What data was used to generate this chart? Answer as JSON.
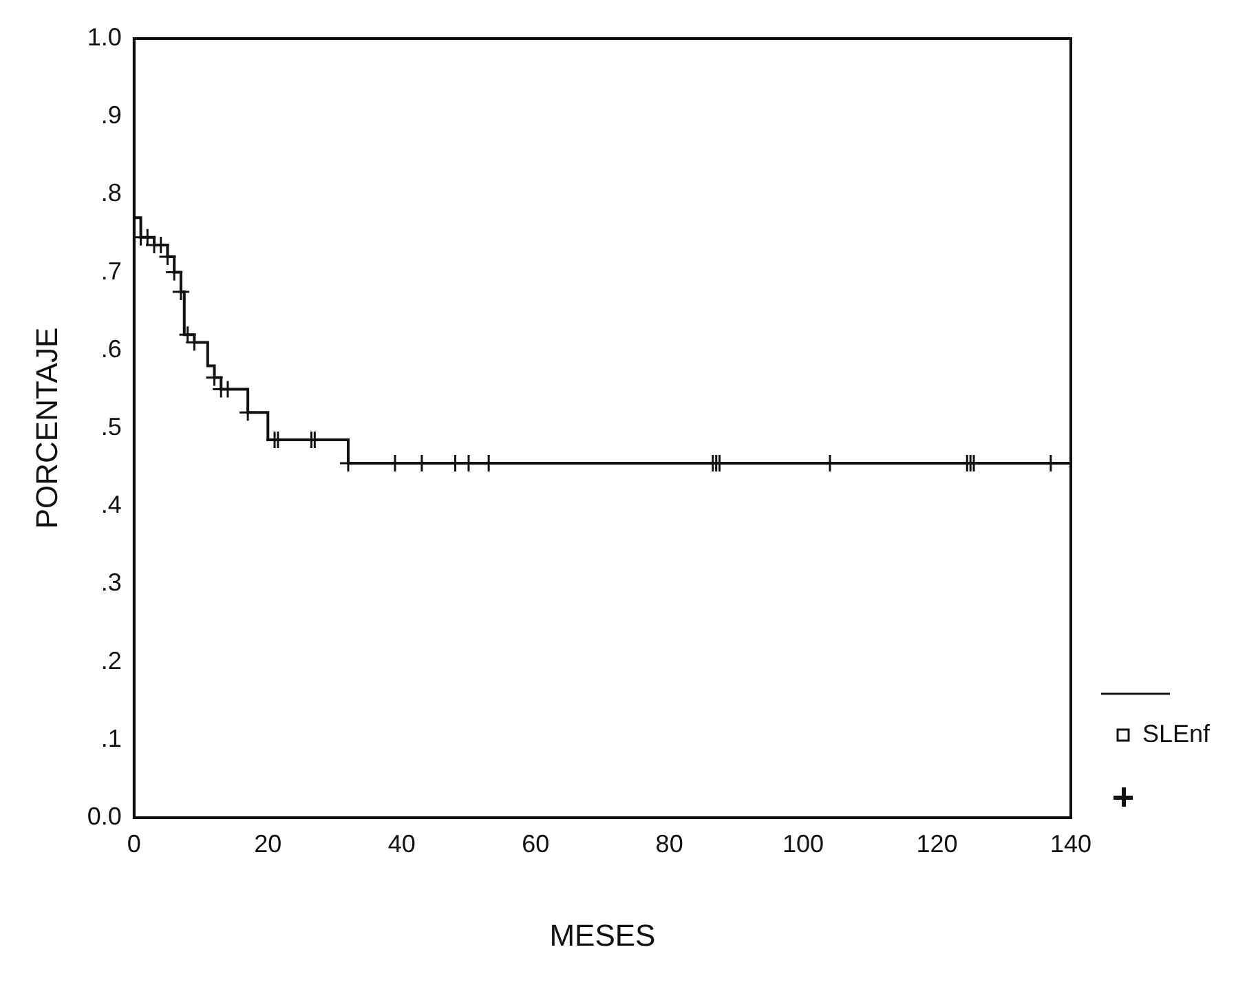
{
  "chart_data": {
    "type": "step",
    "xlabel": "MESES",
    "ylabel": "PORCENTAJE",
    "xlim": [
      0,
      140
    ],
    "xticks": [
      0,
      20,
      40,
      60,
      80,
      100,
      120,
      140
    ],
    "ylim": [
      0,
      1
    ],
    "yticks": [
      {
        "value": 0,
        "label": "0.0"
      },
      {
        "value": 0.1,
        "label": ".1"
      },
      {
        "value": 0.2,
        "label": ".2"
      },
      {
        "value": 0.3,
        "label": ".3"
      },
      {
        "value": 0.4,
        "label": ".4"
      },
      {
        "value": 0.5,
        "label": ".5"
      },
      {
        "value": 0.6,
        "label": ".6"
      },
      {
        "value": 0.7,
        "label": ".7"
      },
      {
        "value": 0.8,
        "label": ".8"
      },
      {
        "value": 0.9,
        "label": ".9"
      },
      {
        "value": 1,
        "label": "1.0"
      }
    ],
    "grid": false,
    "legend": "bottom right",
    "series": [
      {
        "name": "SLEnf",
        "color": "#111111",
        "marker": "none",
        "x": [
          0,
          1,
          3,
          5,
          6,
          7,
          7.5,
          9,
          11,
          12,
          13,
          17,
          20,
          32,
          140
        ],
        "values": [
          0.77,
          0.745,
          0.735,
          0.72,
          0.7,
          0.675,
          0.62,
          0.61,
          0.58,
          0.565,
          0.55,
          0.52,
          0.485,
          0.455,
          0.455
        ]
      },
      {
        "type": "scatter",
        "color": "#111111",
        "marker": "cross",
        "x": [
          1,
          2,
          3,
          4,
          5,
          6,
          7,
          8,
          9,
          12,
          13,
          14,
          17,
          21,
          21.5,
          26.5,
          27,
          32,
          39,
          43,
          48,
          50,
          53,
          86.5,
          87,
          87.5,
          104,
          124.5,
          125,
          125.5,
          137
        ],
        "values": [
          0.745,
          0.745,
          0.735,
          0.735,
          0.72,
          0.7,
          0.675,
          0.62,
          0.61,
          0.565,
          0.55,
          0.55,
          0.52,
          0.485,
          0.485,
          0.485,
          0.485,
          0.455,
          0.455,
          0.455,
          0.455,
          0.455,
          0.455,
          0.455,
          0.455,
          0.455,
          0.455,
          0.455,
          0.455,
          0.455,
          0.455
        ]
      }
    ]
  }
}
